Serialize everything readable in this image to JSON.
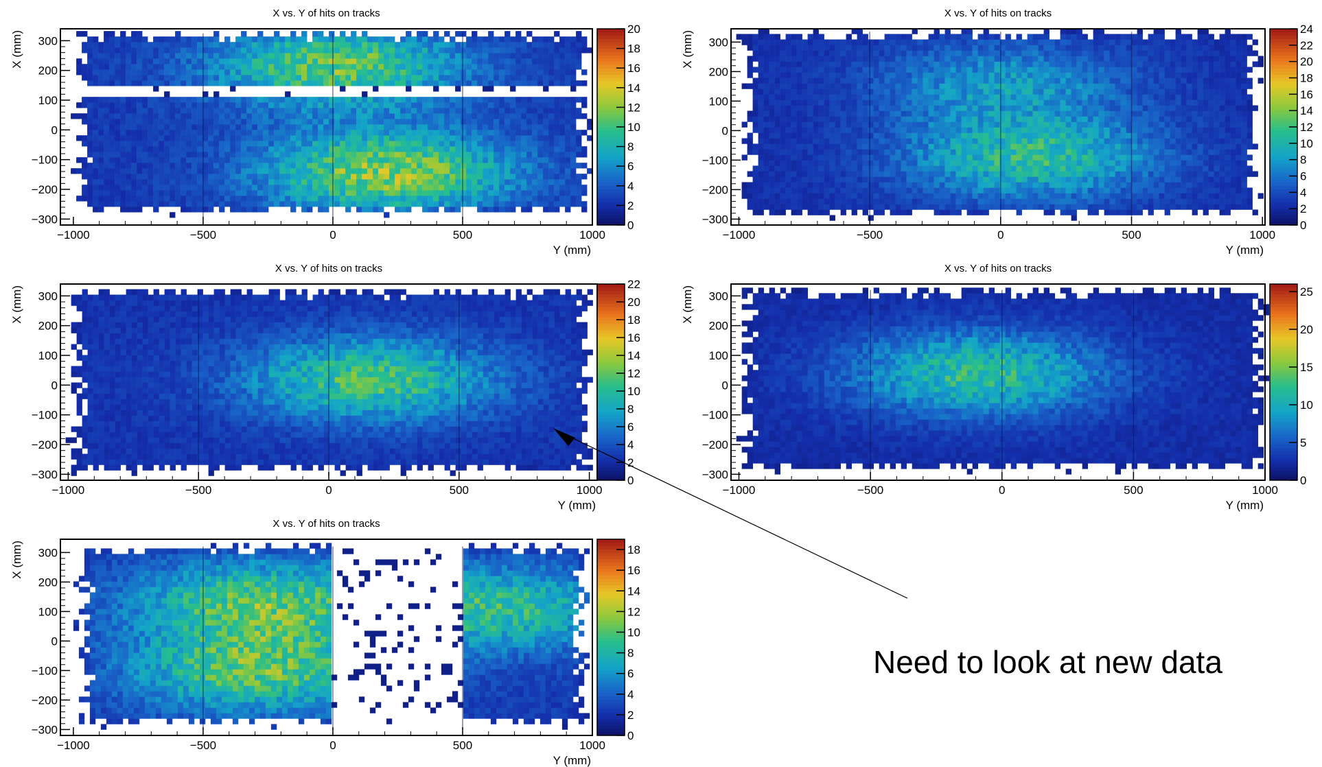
{
  "chart_data": [
    {
      "type": "heatmap",
      "title": "X vs. Y of hits on tracks",
      "xlabel": "Y (mm)",
      "ylabel": "X (mm)",
      "xlim": [
        -1050,
        1000
      ],
      "ylim": [
        -320,
        340
      ],
      "xticks": [
        "−1000",
        "−500",
        "0",
        "500",
        "1000"
      ],
      "yticks": [
        "−300",
        "−200",
        "−100",
        "0",
        "100",
        "200",
        "300"
      ],
      "colorbar": {
        "min": 0,
        "max": 20,
        "labels": [
          "0",
          "2",
          "4",
          "6",
          "8",
          "10",
          "12",
          "14",
          "16",
          "18",
          "20"
        ]
      },
      "colormap": "root_rainbow",
      "coverage": {
        "x": [
          -1010,
          1000
        ],
        "y": [
          -295,
          325
        ]
      },
      "density_peaks": [
        {
          "x": 0,
          "y": 205,
          "level": 11
        },
        {
          "x": 200,
          "y": -150,
          "level": 12
        }
      ],
      "gaps": [
        {
          "axis": "y",
          "from": 95,
          "to": 130
        }
      ]
    },
    {
      "type": "heatmap",
      "title": "X vs. Y of hits on tracks",
      "xlabel": "Y (mm)",
      "ylabel": "X (mm)",
      "xlim": [
        -1030,
        1010
      ],
      "ylim": [
        -320,
        345
      ],
      "xticks": [
        "−1000",
        "−500",
        "0",
        "500",
        "1000"
      ],
      "yticks": [
        "−300",
        "−200",
        "−100",
        "0",
        "100",
        "200",
        "300"
      ],
      "colorbar": {
        "min": 0,
        "max": 24,
        "labels": [
          "0",
          "2",
          "4",
          "6",
          "8",
          "10",
          "12",
          "14",
          "16",
          "18",
          "20",
          "22",
          "24"
        ]
      },
      "colormap": "root_rainbow",
      "coverage": {
        "x": [
          -1010,
          990
        ],
        "y": [
          -305,
          335
        ]
      },
      "density_peaks": [
        {
          "x": 100,
          "y": -100,
          "level": 11
        },
        {
          "x": 0,
          "y": 150,
          "level": 8
        }
      ],
      "gaps": []
    },
    {
      "type": "heatmap",
      "title": "X vs. Y of hits on tracks",
      "xlabel": "Y (mm)",
      "ylabel": "X (mm)",
      "xlim": [
        -1030,
        1030
      ],
      "ylim": [
        -320,
        340
      ],
      "xticks": [
        "−1000",
        "−500",
        "0",
        "500",
        "1000"
      ],
      "yticks": [
        "−300",
        "−200",
        "−100",
        "0",
        "100",
        "200",
        "300"
      ],
      "colorbar": {
        "min": 0,
        "max": 22,
        "labels": [
          "0",
          "2",
          "4",
          "6",
          "8",
          "10",
          "12",
          "14",
          "16",
          "18",
          "20",
          "22"
        ]
      },
      "colormap": "root_rainbow",
      "coverage": {
        "x": [
          -1010,
          1010
        ],
        "y": [
          -305,
          320
        ]
      },
      "density_peaks": [
        {
          "x": 150,
          "y": 10,
          "level": 11
        }
      ],
      "gaps": [
        {
          "axis": "x",
          "from": 875,
          "to": 885
        }
      ]
    },
    {
      "type": "heatmap",
      "title": "X vs. Y of hits on tracks",
      "xlabel": "Y (mm)",
      "ylabel": "X (mm)",
      "xlim": [
        -1030,
        1000
      ],
      "ylim": [
        -320,
        340
      ],
      "xticks": [
        "−1000",
        "−500",
        "0",
        "500",
        "1000"
      ],
      "yticks": [
        "−300",
        "−200",
        "−100",
        "0",
        "100",
        "200",
        "300"
      ],
      "colorbar": {
        "min": 0,
        "max": 26,
        "labels": [
          "0",
          "5",
          "10",
          "15",
          "20",
          "25"
        ]
      },
      "colormap": "root_rainbow",
      "coverage": {
        "x": [
          -1010,
          1000
        ],
        "y": [
          -300,
          320
        ]
      },
      "density_peaks": [
        {
          "x": -100,
          "y": 30,
          "level": 12
        }
      ],
      "gaps": []
    },
    {
      "type": "heatmap",
      "title": "X vs. Y of hits on tracks",
      "xlabel": "Y (mm)",
      "ylabel": "X (mm)",
      "xlim": [
        -1050,
        1000
      ],
      "ylim": [
        -320,
        345
      ],
      "xticks": [
        "−1000",
        "−500",
        "0",
        "500",
        "1000"
      ],
      "yticks": [
        "−300",
        "−200",
        "−100",
        "0",
        "100",
        "200",
        "300"
      ],
      "colorbar": {
        "min": 0,
        "max": 19,
        "labels": [
          "0",
          "2",
          "4",
          "6",
          "8",
          "10",
          "12",
          "14",
          "16",
          "18"
        ]
      },
      "colormap": "root_rainbow",
      "coverage": {
        "x": [
          -1000,
          980
        ],
        "y": [
          -300,
          320
        ]
      },
      "density_peaks": [
        {
          "x": -300,
          "y": 120,
          "level": 10
        },
        {
          "x": -300,
          "y": -110,
          "level": 10
        },
        {
          "x": 620,
          "y": 100,
          "level": 9
        }
      ],
      "gaps": [
        {
          "axis": "x",
          "from": -10,
          "to": 500
        }
      ]
    }
  ],
  "annotation": {
    "text": "Need to look at new data"
  }
}
